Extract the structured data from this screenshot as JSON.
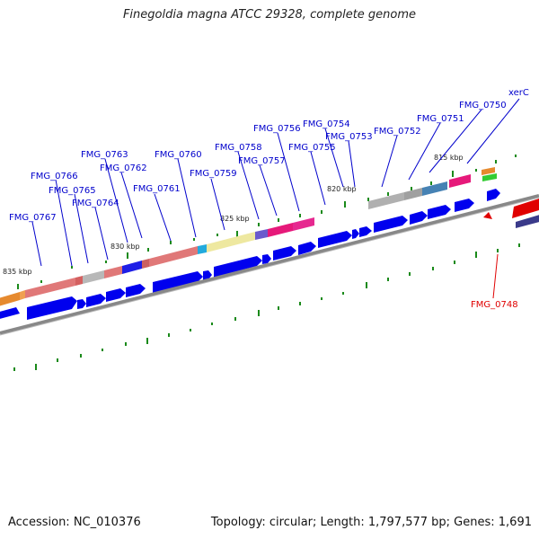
{
  "title": "Finegoldia magna ATCC 29328, complete genome",
  "footer": {
    "accession": "Accession: NC_010376",
    "stats": "Topology: circular; Length: 1,797,577 bp; Genes: 1,691"
  },
  "colors": {
    "label": "#0000cc",
    "highlight": "#e00000",
    "gene_arrow": "#0000ee",
    "backbone": "#888888",
    "tick": "#1a8a1a"
  },
  "scale_labels": [
    "835 kbp",
    "830 kbp",
    "825 kbp",
    "820 kbp",
    "815 kbp"
  ],
  "genes": [
    {
      "name": "FMG_0767",
      "color": "blue"
    },
    {
      "name": "FMG_0766",
      "color": "blue"
    },
    {
      "name": "FMG_0765",
      "color": "blue"
    },
    {
      "name": "FMG_0764",
      "color": "blue"
    },
    {
      "name": "FMG_0763",
      "color": "blue"
    },
    {
      "name": "FMG_0762",
      "color": "blue"
    },
    {
      "name": "FMG_0761",
      "color": "blue"
    },
    {
      "name": "FMG_0760",
      "color": "blue"
    },
    {
      "name": "FMG_0759",
      "color": "blue"
    },
    {
      "name": "FMG_0758",
      "color": "blue"
    },
    {
      "name": "FMG_0757",
      "color": "blue"
    },
    {
      "name": "FMG_0756",
      "color": "blue"
    },
    {
      "name": "FMG_0755",
      "color": "blue"
    },
    {
      "name": "FMG_0754",
      "color": "blue"
    },
    {
      "name": "FMG_0753",
      "color": "blue"
    },
    {
      "name": "FMG_0752",
      "color": "blue"
    },
    {
      "name": "FMG_0751",
      "color": "blue"
    },
    {
      "name": "FMG_0750",
      "color": "blue"
    },
    {
      "name": "xerC",
      "color": "blue"
    },
    {
      "name": "FMG_0748",
      "color": "red"
    }
  ]
}
